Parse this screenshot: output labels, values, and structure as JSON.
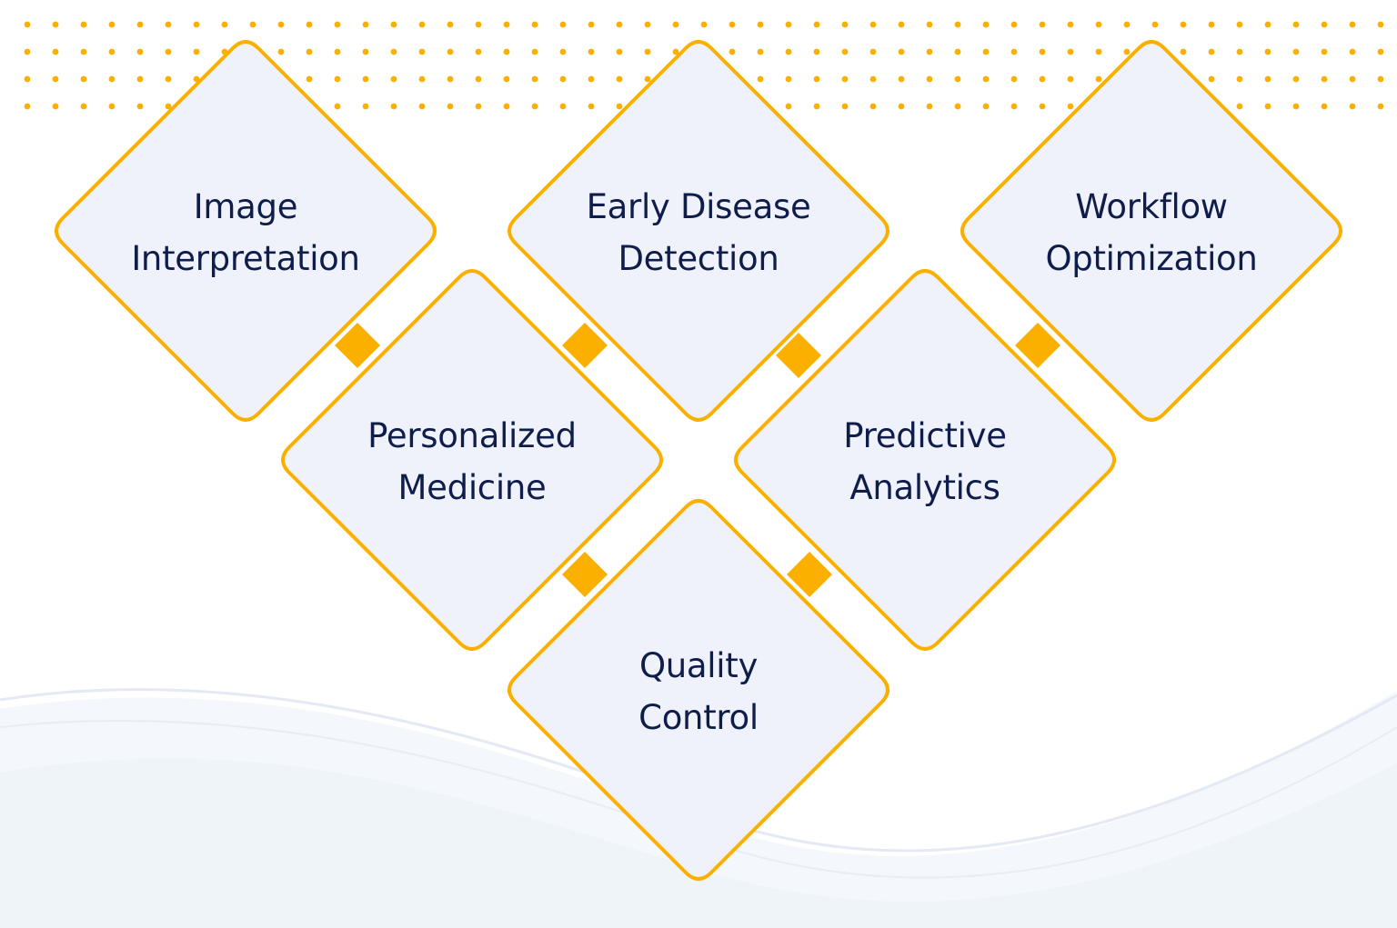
{
  "colors": {
    "accent": "#fbb000",
    "diamond_fill": "#eff2fb",
    "text": "#0f1d4a",
    "dots": "#fbb000",
    "wave": "#e8eef8"
  },
  "items": [
    {
      "id": "image-interpretation",
      "line1": "Image",
      "line2": "Interpretation"
    },
    {
      "id": "early-disease-detection",
      "line1": "Early Disease",
      "line2": "Detection"
    },
    {
      "id": "workflow-optimization",
      "line1": "Workflow",
      "line2": "Optimization"
    },
    {
      "id": "personalized-medicine",
      "line1": "Personalized",
      "line2": "Medicine"
    },
    {
      "id": "predictive-analytics",
      "line1": "Predictive",
      "line2": "Analytics"
    },
    {
      "id": "quality-control",
      "line1": "Quality",
      "line2": "Control"
    }
  ]
}
